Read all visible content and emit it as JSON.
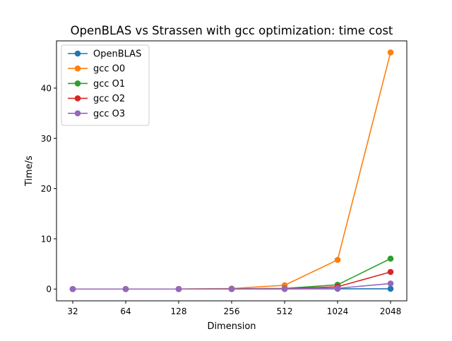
{
  "chart_data": {
    "type": "line",
    "title": "OpenBLAS vs Strassen with gcc optimization: time cost",
    "xlabel": "Dimension",
    "ylabel": "Time/s",
    "categories": [
      "32",
      "64",
      "128",
      "256",
      "512",
      "1024",
      "2048"
    ],
    "ylim": [
      -2.35,
      49.4
    ],
    "yticks": [
      0,
      10,
      20,
      30,
      40
    ],
    "grid": false,
    "legend_position": "top-left",
    "series": [
      {
        "name": "OpenBLAS",
        "color": "#1f77b4",
        "values": [
          0.0,
          0.0,
          0.0,
          0.0,
          0.02,
          0.05,
          0.05
        ]
      },
      {
        "name": "gcc O0",
        "color": "#ff7f0e",
        "values": [
          0.0,
          0.0,
          0.0,
          0.1,
          0.75,
          5.8,
          47.1
        ]
      },
      {
        "name": "gcc O1",
        "color": "#2ca02c",
        "values": [
          0.0,
          0.0,
          0.0,
          0.02,
          0.12,
          0.85,
          6.05
        ]
      },
      {
        "name": "gcc O2",
        "color": "#d62728",
        "values": [
          0.0,
          0.0,
          0.0,
          0.01,
          0.07,
          0.45,
          3.4
        ]
      },
      {
        "name": "gcc O3",
        "color": "#9467bd",
        "values": [
          0.0,
          0.0,
          0.0,
          0.01,
          0.03,
          0.15,
          1.1
        ]
      }
    ]
  }
}
